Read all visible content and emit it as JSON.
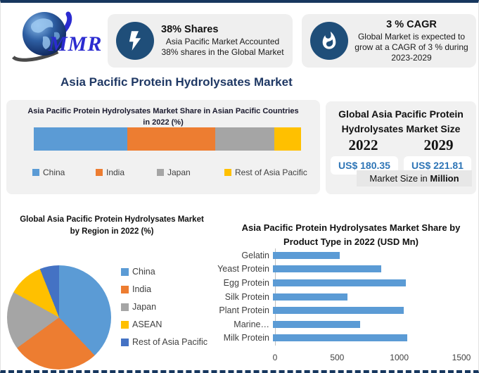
{
  "logo": {
    "text": "MMR"
  },
  "page": {
    "main_title": "Asia Pacific Protein Hydrolysates Market"
  },
  "stats": [
    {
      "icon": "lightning-icon",
      "title": "38% Shares",
      "desc": "Asia Pacific Market Accounted 38% shares in the Global Market"
    },
    {
      "icon": "flame-icon",
      "title": "3 % CAGR",
      "desc": "Global Market is expected to grow at a CAGR of 3 % during 2023-2029"
    }
  ],
  "market_size": {
    "title": "Global Asia Pacific Protein Hydrolysates Market Size",
    "year_left": "2022",
    "year_right": "2029",
    "value_left": "US$ 180.35",
    "value_right": "US$ 221.81",
    "note_prefix": "Market Size in ",
    "note_bold": "Million"
  },
  "colors": {
    "navy": "#17375E",
    "icon_circle": "#1F4E79",
    "title_blue": "#1F3864",
    "value_blue": "#2E75B6",
    "panel_gray": "#F1F1F1",
    "series_blue": "#5B9BD5",
    "series_orange": "#ED7D31",
    "series_gray": "#A5A5A5",
    "series_yellow": "#FFC000",
    "series_darkblue": "#4472C4"
  },
  "chart_data": [
    {
      "type": "bar",
      "subtype": "stacked-horizontal",
      "title": "Asia Pacific Protein Hydrolysates Market Share in Asian Pacific Countries in 2022 (%)",
      "categories": [
        "China",
        "India",
        "Japan",
        "Rest of Asia Pacific"
      ],
      "values": [
        35,
        33,
        22,
        10
      ],
      "colors": [
        "#5B9BD5",
        "#ED7D31",
        "#A5A5A5",
        "#FFC000"
      ],
      "legend_position": "bottom",
      "unit": "%"
    },
    {
      "type": "pie",
      "title": "Global Asia Pacific Protein Hydrolysates Market by Region in 2022 (%)",
      "categories": [
        "China",
        "India",
        "Japan",
        "ASEAN",
        "Rest of Asia Pacific"
      ],
      "values": [
        38,
        27,
        18,
        11,
        6
      ],
      "colors": [
        "#5B9BD5",
        "#ED7D31",
        "#A5A5A5",
        "#FFC000",
        "#4472C4"
      ],
      "legend_position": "right",
      "start_angle": 0,
      "unit": "%"
    },
    {
      "type": "bar",
      "subtype": "horizontal",
      "title": "Asia Pacific Protein Hydrolysates Market Share by Product Type in 2022 (USD Mn)",
      "categories": [
        "Gelatin",
        "Yeast Protein",
        "Egg Protein",
        "Silk Protein",
        "Plant Protein",
        "Marine…",
        "Milk Protein"
      ],
      "values": [
        540,
        870,
        1070,
        600,
        1050,
        700,
        1080
      ],
      "bar_color": "#5B9BD5",
      "xlim": [
        0,
        1500
      ],
      "xticks": [
        0,
        500,
        1000,
        1500
      ],
      "grid": false,
      "unit": "USD Mn"
    }
  ]
}
